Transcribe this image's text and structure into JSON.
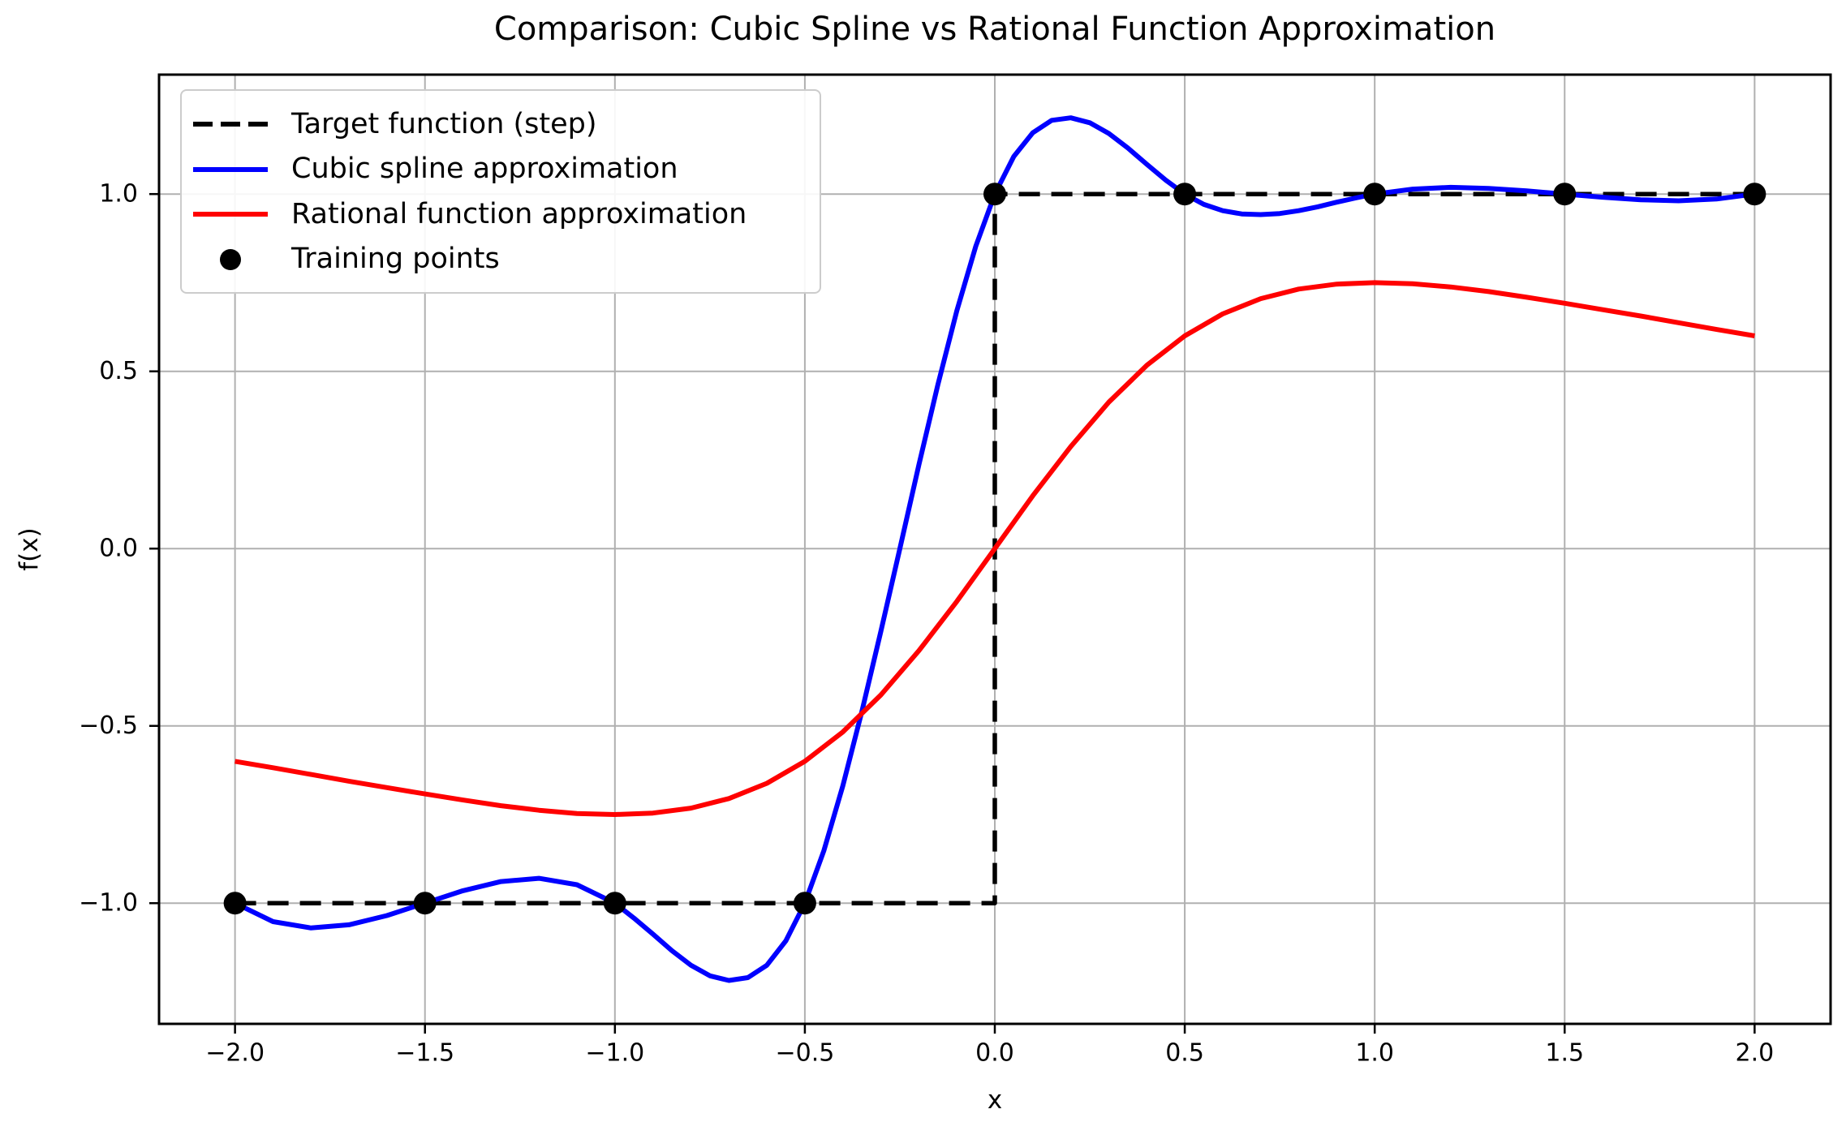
{
  "chart_data": {
    "type": "line",
    "title": "Comparison: Cubic Spline vs Rational Function Approximation",
    "xlabel": "x",
    "ylabel": "f(x)",
    "xlim": [
      -2.2,
      2.2
    ],
    "ylim": [
      -1.3404,
      1.3368
    ],
    "grid": true,
    "grid_color": "#b0b0b0",
    "background_color": "#ffffff",
    "spine_color": "#000000",
    "legend": {
      "location": "upper left"
    },
    "xticks": {
      "values": [
        -2,
        -1.5,
        -1,
        -0.5,
        0,
        0.5,
        1,
        1.5,
        2
      ],
      "labels": [
        "−2.0",
        "−1.5",
        "−1.0",
        "−0.5",
        "0.0",
        "0.5",
        "1.0",
        "1.5",
        "2.0"
      ]
    },
    "yticks": {
      "values": [
        1,
        0.5,
        0,
        -0.5,
        -1
      ],
      "labels": [
        "1.0",
        "0.5",
        "0.0",
        "−0.5",
        "−1.0"
      ]
    },
    "series": [
      {
        "name": "Target function (step)",
        "type": "line",
        "color": "#000000",
        "linestyle": "dashed",
        "points": [
          [
            -2,
            -1
          ],
          [
            0,
            -1
          ],
          [
            0,
            1
          ],
          [
            2,
            1
          ]
        ]
      },
      {
        "name": "Cubic spline approximation",
        "type": "line",
        "color": "#0000ff",
        "linestyle": "solid",
        "points": [
          [
            -2,
            -1
          ],
          [
            -1.9,
            -1.052
          ],
          [
            -1.8,
            -1.07
          ],
          [
            -1.7,
            -1.061
          ],
          [
            -1.6,
            -1.035
          ],
          [
            -1.5,
            -1
          ],
          [
            -1.4,
            -0.965
          ],
          [
            -1.3,
            -0.939
          ],
          [
            -1.2,
            -0.93
          ],
          [
            -1.1,
            -0.948
          ],
          [
            -1,
            -1
          ],
          [
            -0.95,
            -1.042
          ],
          [
            -0.9,
            -1.087
          ],
          [
            -0.85,
            -1.134
          ],
          [
            -0.8,
            -1.175
          ],
          [
            -0.75,
            -1.205
          ],
          [
            -0.7,
            -1.218
          ],
          [
            -0.65,
            -1.21
          ],
          [
            -0.6,
            -1.175
          ],
          [
            -0.55,
            -1.106
          ],
          [
            -0.5,
            -1
          ],
          [
            -0.45,
            -0.852
          ],
          [
            -0.4,
            -0.669
          ],
          [
            -0.35,
            -0.46
          ],
          [
            -0.3,
            -0.234
          ],
          [
            -0.25,
            0
          ],
          [
            -0.2,
            0.236
          ],
          [
            -0.15,
            0.462
          ],
          [
            -0.1,
            0.671
          ],
          [
            -0.05,
            0.853
          ],
          [
            0,
            1
          ],
          [
            0.05,
            1.106
          ],
          [
            0.1,
            1.173
          ],
          [
            0.15,
            1.208
          ],
          [
            0.2,
            1.215
          ],
          [
            0.25,
            1.201
          ],
          [
            0.3,
            1.171
          ],
          [
            0.35,
            1.13
          ],
          [
            0.4,
            1.084
          ],
          [
            0.45,
            1.039
          ],
          [
            0.5,
            1
          ],
          [
            0.55,
            0.971
          ],
          [
            0.6,
            0.953
          ],
          [
            0.65,
            0.944
          ],
          [
            0.7,
            0.942
          ],
          [
            0.75,
            0.945
          ],
          [
            0.8,
            0.953
          ],
          [
            0.85,
            0.964
          ],
          [
            0.9,
            0.977
          ],
          [
            0.95,
            0.989
          ],
          [
            1,
            1
          ],
          [
            1.1,
            1.014
          ],
          [
            1.2,
            1.019
          ],
          [
            1.3,
            1.016
          ],
          [
            1.4,
            1.009
          ],
          [
            1.5,
            1
          ],
          [
            1.6,
            0.991
          ],
          [
            1.7,
            0.984
          ],
          [
            1.8,
            0.981
          ],
          [
            1.9,
            0.986
          ],
          [
            2,
            1
          ]
        ]
      },
      {
        "name": "Rational function approximation",
        "type": "line",
        "color": "#ff0000",
        "linestyle": "solid",
        "points": [
          [
            -2,
            -0.6
          ],
          [
            -1.9,
            -0.618
          ],
          [
            -1.8,
            -0.637
          ],
          [
            -1.7,
            -0.656
          ],
          [
            -1.6,
            -0.674
          ],
          [
            -1.5,
            -0.692
          ],
          [
            -1.4,
            -0.709
          ],
          [
            -1.3,
            -0.725
          ],
          [
            -1.2,
            -0.738
          ],
          [
            -1.1,
            -0.747
          ],
          [
            -1,
            -0.75
          ],
          [
            -0.9,
            -0.746
          ],
          [
            -0.8,
            -0.732
          ],
          [
            -0.7,
            -0.705
          ],
          [
            -0.6,
            -0.662
          ],
          [
            -0.5,
            -0.6
          ],
          [
            -0.4,
            -0.517
          ],
          [
            -0.3,
            -0.413
          ],
          [
            -0.2,
            -0.288
          ],
          [
            -0.1,
            -0.149
          ],
          [
            0,
            0
          ],
          [
            0.1,
            0.149
          ],
          [
            0.2,
            0.288
          ],
          [
            0.3,
            0.413
          ],
          [
            0.4,
            0.517
          ],
          [
            0.5,
            0.6
          ],
          [
            0.6,
            0.662
          ],
          [
            0.7,
            0.705
          ],
          [
            0.8,
            0.732
          ],
          [
            0.9,
            0.746
          ],
          [
            1,
            0.75
          ],
          [
            1.1,
            0.747
          ],
          [
            1.2,
            0.738
          ],
          [
            1.3,
            0.725
          ],
          [
            1.4,
            0.709
          ],
          [
            1.5,
            0.692
          ],
          [
            1.6,
            0.674
          ],
          [
            1.7,
            0.656
          ],
          [
            1.8,
            0.637
          ],
          [
            1.9,
            0.618
          ],
          [
            2,
            0.6
          ]
        ]
      },
      {
        "name": "Training points",
        "type": "scatter",
        "color": "#000000",
        "points": [
          [
            -2,
            -1
          ],
          [
            -1.5,
            -1
          ],
          [
            -1,
            -1
          ],
          [
            -0.5,
            -1
          ],
          [
            0,
            1
          ],
          [
            0.5,
            1
          ],
          [
            1,
            1
          ],
          [
            1.5,
            1
          ],
          [
            2,
            1
          ]
        ]
      }
    ]
  }
}
